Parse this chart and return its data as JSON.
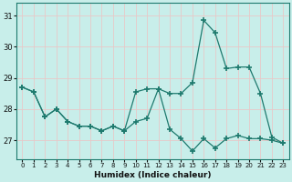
{
  "xlabel": "Humidex (Indice chaleur)",
  "xlim": [
    -0.5,
    23.5
  ],
  "ylim": [
    26.4,
    31.4
  ],
  "yticks": [
    27,
    28,
    29,
    30,
    31
  ],
  "xticks": [
    0,
    1,
    2,
    3,
    4,
    5,
    6,
    7,
    8,
    9,
    10,
    11,
    12,
    13,
    14,
    15,
    16,
    17,
    18,
    19,
    20,
    21,
    22,
    23
  ],
  "bg_color": "#c8eeea",
  "line_color": "#1e7a6e",
  "grid_color": "#e8c8c8",
  "series1_x": [
    0,
    1,
    2,
    3,
    4,
    5,
    6,
    7,
    8,
    9,
    10,
    11,
    12,
    13,
    14,
    15,
    16,
    17,
    18,
    19,
    20,
    21,
    22,
    23
  ],
  "series1_y": [
    28.7,
    28.55,
    27.75,
    28.0,
    27.6,
    27.45,
    27.45,
    27.3,
    27.45,
    27.3,
    27.6,
    27.7,
    28.65,
    27.35,
    27.05,
    26.65,
    27.05,
    26.75,
    27.05,
    27.15,
    27.05,
    27.05,
    27.0,
    26.9
  ],
  "series2_x": [
    0,
    1,
    2,
    3,
    4,
    5,
    6,
    7,
    8,
    9,
    10,
    11,
    12,
    13,
    14,
    15,
    16,
    17,
    18,
    19,
    20,
    21,
    22,
    23
  ],
  "series2_y": [
    28.7,
    28.55,
    27.75,
    28.0,
    27.6,
    27.45,
    27.45,
    27.3,
    27.45,
    27.3,
    28.55,
    28.65,
    28.65,
    28.5,
    28.5,
    28.85,
    30.85,
    30.45,
    29.3,
    29.35,
    29.35,
    28.5,
    27.1,
    26.9
  ]
}
